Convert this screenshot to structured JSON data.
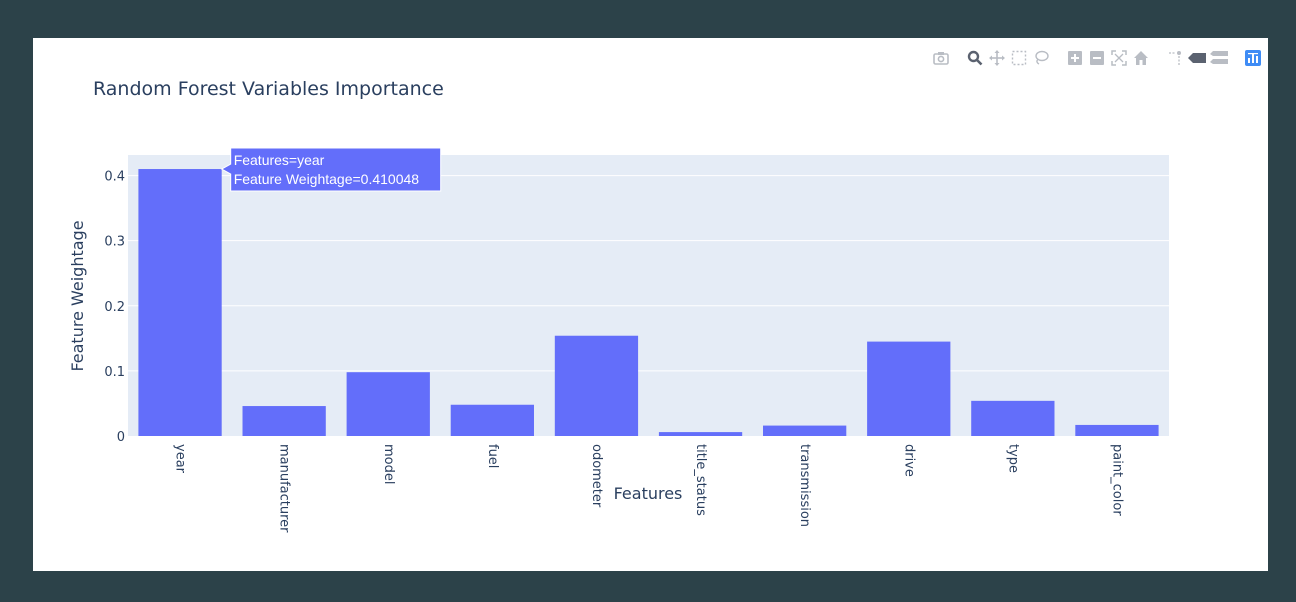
{
  "colors": {
    "bar": "#636efa",
    "plot_bg": "#e5ecf6",
    "grid": "#ffffff",
    "text": "#2a3f5f",
    "frame": "#2c4249"
  },
  "modebar": {
    "buttons": [
      {
        "icon": "camera-icon",
        "label": "Download plot as a png"
      },
      {
        "icon": "zoom-icon",
        "label": "Zoom"
      },
      {
        "icon": "pan-icon",
        "label": "Pan"
      },
      {
        "icon": "box-select-icon",
        "label": "Box Select"
      },
      {
        "icon": "lasso-select-icon",
        "label": "Lasso Select"
      },
      {
        "icon": "zoom-in-icon",
        "label": "Zoom in"
      },
      {
        "icon": "zoom-out-icon",
        "label": "Zoom out"
      },
      {
        "icon": "autoscale-icon",
        "label": "Autoscale"
      },
      {
        "icon": "reset-axes-icon",
        "label": "Reset axes"
      },
      {
        "icon": "spike-lines-icon",
        "label": "Toggle Spike Lines"
      },
      {
        "icon": "hover-closest-icon",
        "label": "Show closest data on hover"
      },
      {
        "icon": "hover-compare-icon",
        "label": "Compare data on hover"
      },
      {
        "icon": "plotly-logo-icon",
        "label": "Produced with Plotly"
      }
    ]
  },
  "chart_data": {
    "type": "bar",
    "title": "Random Forest Variables Importance",
    "xlabel": "Features",
    "ylabel": "Feature Weightage",
    "categories": [
      "year",
      "manufacturer",
      "model",
      "fuel",
      "odometer",
      "title_status",
      "transmission",
      "drive",
      "type",
      "paint_color"
    ],
    "values": [
      0.410048,
      0.046,
      0.098,
      0.048,
      0.154,
      0.006,
      0.016,
      0.145,
      0.054,
      0.017
    ],
    "yticks": [
      0,
      0.1,
      0.2,
      0.3,
      0.4
    ],
    "ytick_labels": [
      "0",
      "0.1",
      "0.2",
      "0.3",
      "0.4"
    ],
    "ylim": [
      0,
      0.4316
    ],
    "grid": true,
    "legend": "none",
    "hover": {
      "category": "year",
      "line1": "Features=year",
      "line2": "Feature Weightage=0.410048"
    }
  }
}
